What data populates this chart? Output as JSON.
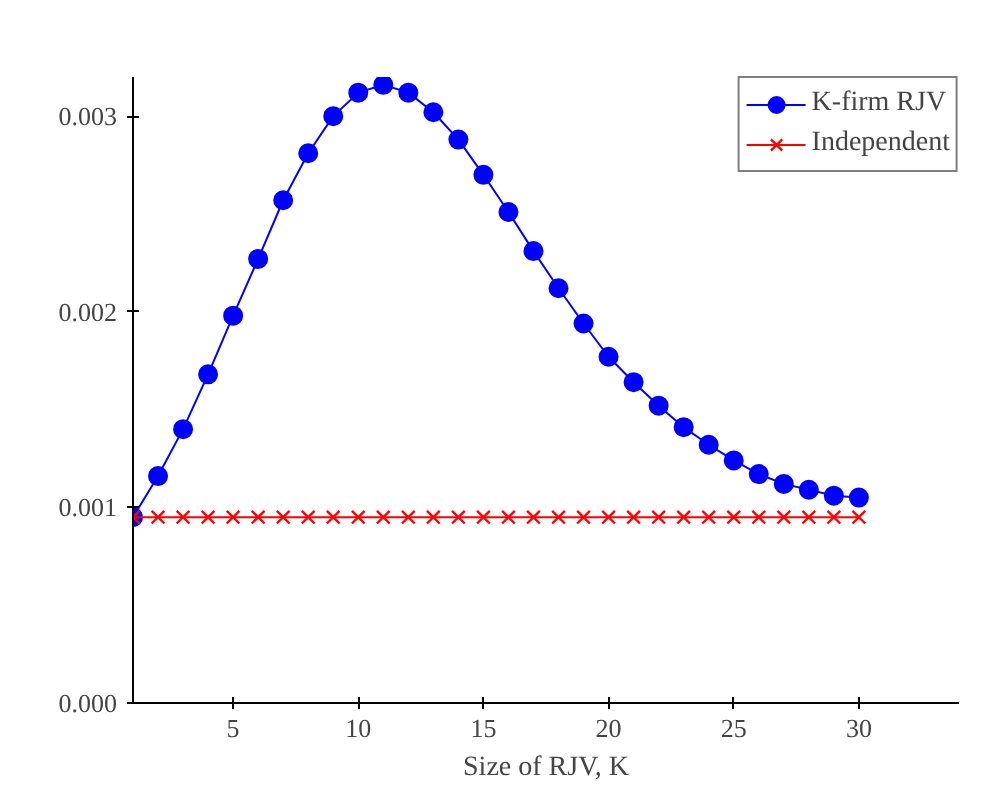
{
  "chart_data": {
    "type": "line",
    "xlabel": "Size of RJV, K",
    "x": [
      1,
      2,
      3,
      4,
      5,
      6,
      7,
      8,
      9,
      10,
      11,
      12,
      13,
      14,
      15,
      16,
      17,
      18,
      19,
      20,
      21,
      22,
      23,
      24,
      25,
      26,
      27,
      28,
      29,
      30
    ],
    "series": [
      {
        "name": "K-firm RJV",
        "color": "#0000ff",
        "marker": "circle",
        "values": [
          0.00095,
          0.00116,
          0.0014,
          0.00168,
          0.00198,
          0.00227,
          0.00257,
          0.00281,
          0.003,
          0.00312,
          0.00316,
          0.00312,
          0.00302,
          0.00288,
          0.0027,
          0.00251,
          0.00231,
          0.00212,
          0.00194,
          0.00177,
          0.00164,
          0.00152,
          0.00141,
          0.00132,
          0.00124,
          0.00117,
          0.00112,
          0.00109,
          0.00106,
          0.00105
        ]
      },
      {
        "name": "Independent",
        "color": "#ff0000",
        "marker": "cross",
        "values": [
          0.00095,
          0.00095,
          0.00095,
          0.00095,
          0.00095,
          0.00095,
          0.00095,
          0.00095,
          0.00095,
          0.00095,
          0.00095,
          0.00095,
          0.00095,
          0.00095,
          0.00095,
          0.00095,
          0.00095,
          0.00095,
          0.00095,
          0.00095,
          0.00095,
          0.00095,
          0.00095,
          0.00095,
          0.00095,
          0.00095,
          0.00095,
          0.00095,
          0.00095,
          0.00095
        ]
      }
    ],
    "xlim": [
      1,
      34
    ],
    "ylim": [
      0,
      0.0032
    ],
    "xticks": [
      5,
      10,
      15,
      20,
      25,
      30
    ],
    "yticks": [
      {
        "value": 0,
        "label": "0.000"
      },
      {
        "value": 0.001,
        "label": "0.001"
      },
      {
        "value": 0.002,
        "label": "0.002"
      },
      {
        "value": 0.003,
        "label": "0.003"
      }
    ],
    "grid": false,
    "legend": "top right",
    "line_style": "solid"
  }
}
